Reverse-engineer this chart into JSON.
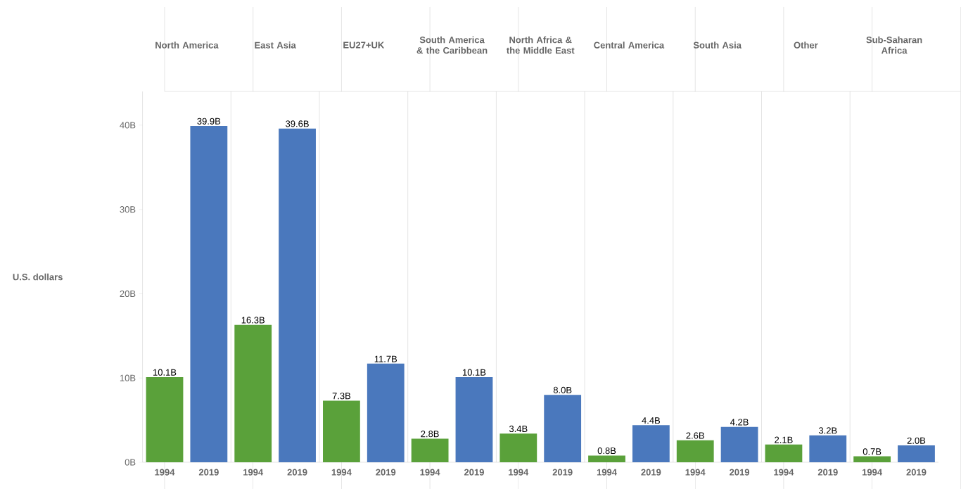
{
  "chart_data": [
    {
      "type": "bar",
      "title": "North America",
      "ylabel": "U.S. dollars",
      "categories": [
        "1994",
        "2019"
      ],
      "values": [
        10.1,
        39.9
      ],
      "colors": [
        "#5aa13a",
        "#4a78bd"
      ],
      "value_labels": [
        "10.1B",
        "39.9B"
      ],
      "ylim": [
        0,
        44
      ],
      "yticks": [
        {
          "value": 0,
          "label": "0B"
        },
        {
          "value": 10,
          "label": "10B"
        },
        {
          "value": 20,
          "label": "20B"
        },
        {
          "value": 30,
          "label": "30B"
        },
        {
          "value": 40,
          "label": "40B"
        }
      ]
    },
    {
      "type": "bar",
      "title": "East Asia",
      "categories": [
        "1994",
        "2019"
      ],
      "values": [
        16.3,
        39.6
      ],
      "colors": [
        "#5aa13a",
        "#4a78bd"
      ],
      "value_labels": [
        "16.3B",
        "39.6B"
      ],
      "ylim": [
        0,
        44
      ],
      "tick_labels": "x"
    },
    {
      "type": "bar",
      "title": "EU27+UK",
      "categories": [
        "1994",
        "2019"
      ],
      "values": [
        7.3,
        11.7
      ],
      "colors": [
        "#5aa13a",
        "#4a78bd"
      ],
      "value_labels": [
        "7.3B",
        "11.7B"
      ],
      "ylim": [
        0,
        44
      ],
      "tick_labels": "x"
    },
    {
      "type": "bar",
      "title": "South America & the Caribbean",
      "categories": [
        "1994",
        "2019"
      ],
      "values": [
        2.8,
        10.1
      ],
      "colors": [
        "#5aa13a",
        "#4a78bd"
      ],
      "value_labels": [
        "2.8B",
        "10.1B"
      ],
      "ylim": [
        0,
        44
      ],
      "tick_labels": "x"
    },
    {
      "type": "bar",
      "title": "North Africa & the Middle East",
      "categories": [
        "1994",
        "2019"
      ],
      "values": [
        3.4,
        8.0
      ],
      "colors": [
        "#5aa13a",
        "#4a78bd"
      ],
      "value_labels": [
        "3.4B",
        "8.0B"
      ],
      "ylim": [
        0,
        44
      ],
      "tick_labels": "x"
    },
    {
      "type": "bar",
      "title": "Central America",
      "categories": [
        "1994",
        "2019"
      ],
      "values": [
        0.8,
        4.4
      ],
      "colors": [
        "#5aa13a",
        "#4a78bd"
      ],
      "value_labels": [
        "0.8B",
        "4.4B"
      ],
      "ylim": [
        0,
        44
      ],
      "tick_labels": "x"
    },
    {
      "type": "bar",
      "title": "South Asia",
      "categories": [
        "1994",
        "2019"
      ],
      "values": [
        2.6,
        4.2
      ],
      "colors": [
        "#5aa13a",
        "#4a78bd"
      ],
      "value_labels": [
        "2.6B",
        "4.2B"
      ],
      "ylim": [
        0,
        44
      ],
      "tick_labels": "x"
    },
    {
      "type": "bar",
      "title": "Other",
      "categories": [
        "1994",
        "2019"
      ],
      "values": [
        2.1,
        3.2
      ],
      "colors": [
        "#5aa13a",
        "#4a78bd"
      ],
      "value_labels": [
        "2.1B",
        "3.2B"
      ],
      "ylim": [
        0,
        44
      ],
      "tick_labels": "x"
    },
    {
      "type": "bar",
      "title": "Sub-Saharan Africa",
      "categories": [
        "1994",
        "2019"
      ],
      "values": [
        0.7,
        2.0
      ],
      "colors": [
        "#5aa13a",
        "#4a78bd"
      ],
      "value_labels": [
        "0.7B",
        "2.0B"
      ],
      "ylim": [
        0,
        44
      ],
      "tick_labels": "x"
    }
  ]
}
